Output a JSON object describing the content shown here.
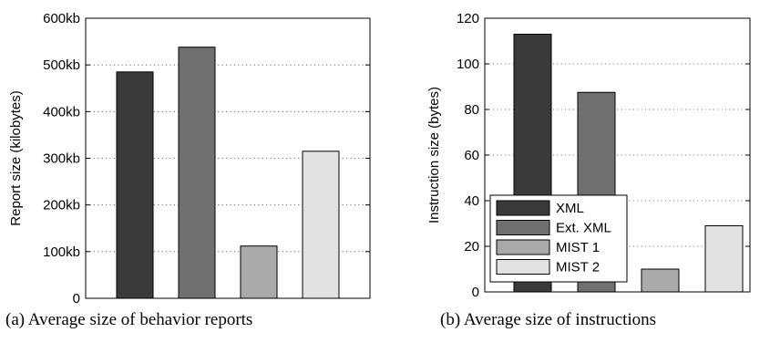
{
  "captions": {
    "a": "(a)  Average size of behavior reports",
    "b": "(b)  Average size of instructions"
  },
  "chart_data": [
    {
      "type": "bar",
      "title": "",
      "xlabel": "",
      "ylabel": "Report size (kilobytes)",
      "categories": [
        "XML",
        "Ext. XML",
        "MIST 1",
        "MIST 2"
      ],
      "values": [
        485,
        538,
        112,
        315
      ],
      "ylim": [
        0,
        600
      ],
      "yticks": [
        0,
        100,
        200,
        300,
        400,
        500,
        600
      ],
      "ytick_labels": [
        "0",
        "100kb",
        "200kb",
        "300kb",
        "400kb",
        "500kb",
        "600kb"
      ],
      "colors": [
        "#3a3a3a",
        "#707070",
        "#a9a9a9",
        "#e2e2e2"
      ],
      "grid": true,
      "legend": "none"
    },
    {
      "type": "bar",
      "title": "",
      "xlabel": "",
      "ylabel": "Instruction size (bytes)",
      "categories": [
        "XML",
        "Ext. XML",
        "MIST 1",
        "MIST 2"
      ],
      "values": [
        113,
        87.5,
        10,
        29
      ],
      "ylim": [
        0,
        120
      ],
      "yticks": [
        0,
        20,
        40,
        60,
        80,
        100,
        120
      ],
      "ytick_labels": [
        "0",
        "20",
        "40",
        "60",
        "80",
        "100",
        "120"
      ],
      "colors": [
        "#3a3a3a",
        "#707070",
        "#a9a9a9",
        "#e2e2e2"
      ],
      "grid": true,
      "legend": "bottom-left",
      "legend_entries": [
        "XML",
        "Ext. XML",
        "MIST 1",
        "MIST 2"
      ]
    }
  ]
}
